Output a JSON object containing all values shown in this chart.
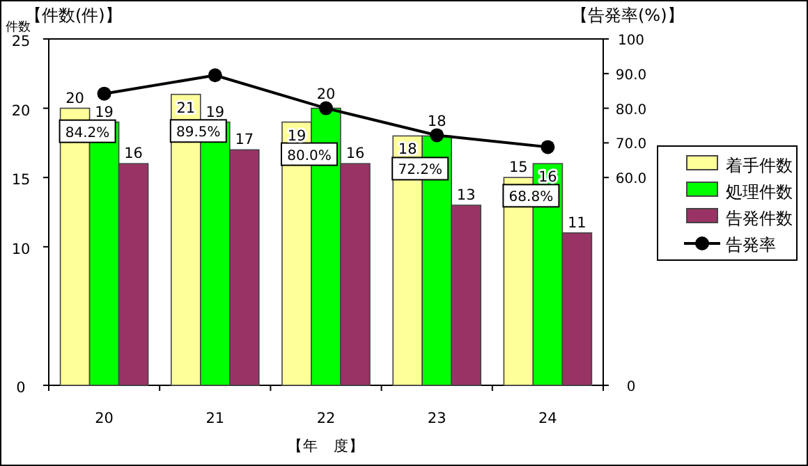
{
  "chart_data": {
    "type": "bar",
    "ylabel": "【件数(件)】",
    "y2label": "【告発率(%)】",
    "xlabel": "【年　度】",
    "annotations": [
      "件数"
    ],
    "categories": [
      "20",
      "21",
      "22",
      "23",
      "24"
    ],
    "series": [
      {
        "name": "着手件数",
        "color": "#ffff99",
        "values": [
          20,
          21,
          19,
          18,
          15
        ]
      },
      {
        "name": "処理件数",
        "color": "#00ff00",
        "values": [
          19,
          19,
          20,
          18,
          16
        ]
      },
      {
        "name": "告発件数",
        "color": "#993366",
        "values": [
          16,
          17,
          16,
          13,
          11
        ]
      },
      {
        "name": "告発率",
        "type": "line",
        "axis": "y2",
        "color": "#000000",
        "values": [
          84.2,
          89.5,
          80.0,
          72.2,
          68.8
        ],
        "value_labels": [
          "84.2%",
          "89.5%",
          "80.0%",
          "72.2%",
          "68.8%"
        ]
      }
    ],
    "ylim": [
      0,
      25
    ],
    "yticks": [
      0,
      10,
      15,
      20,
      25
    ],
    "y2lim": [
      0,
      100
    ],
    "y2ticks": [
      0,
      {
        "value": 60,
        "label": "60.0"
      },
      {
        "value": 70,
        "label": "70.0"
      },
      {
        "value": 80,
        "label": "80.0"
      },
      {
        "value": 90,
        "label": "90.0"
      },
      100
    ],
    "data_labels": true,
    "legend": "right",
    "marker": "circle"
  }
}
